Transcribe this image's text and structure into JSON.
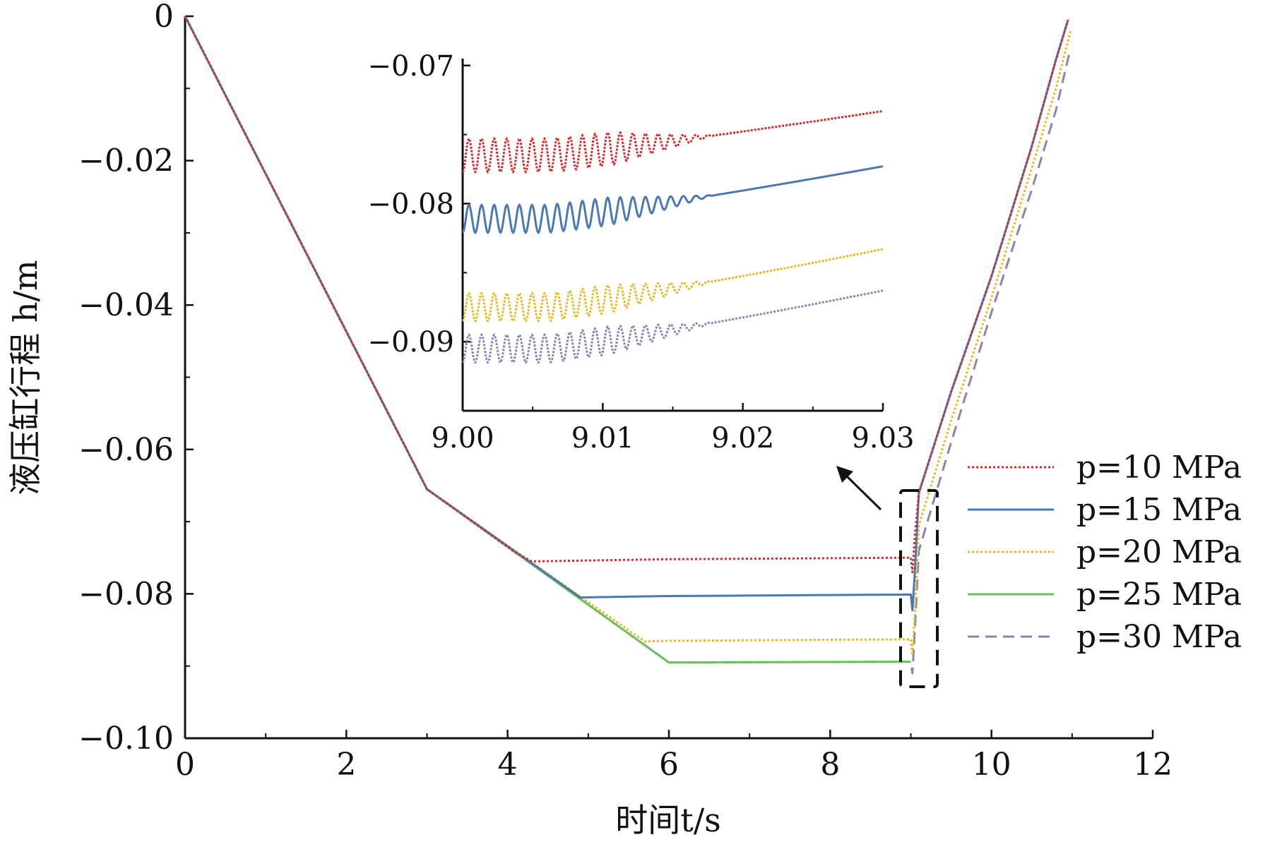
{
  "chart_data": [
    {
      "type": "line",
      "xlabel": "时间t/s",
      "ylabel": "液压缸行程 h/m",
      "xlim": [
        0,
        12
      ],
      "ylim": [
        -0.1,
        0
      ],
      "x_ticks": [
        "0",
        "2",
        "4",
        "6",
        "8",
        "10",
        "12"
      ],
      "y_ticks": [
        "0",
        "−0.02",
        "−0.04",
        "−0.06",
        "−0.08",
        "−0.10"
      ],
      "grid": false,
      "legend_position": "right",
      "series": [
        {
          "name": "p=10 MPa",
          "color": "#d62a2a",
          "style": "dotted",
          "points": [
            [
              0,
              0
            ],
            [
              3,
              -0.0655
            ],
            [
              4.1,
              -0.0743
            ],
            [
              4.3,
              -0.0755
            ],
            [
              6,
              -0.0752
            ],
            [
              9.0,
              -0.075
            ],
            [
              9.02,
              -0.077
            ],
            [
              9.05,
              -0.072
            ],
            [
              9.1,
              -0.066
            ],
            [
              9.5,
              -0.052
            ],
            [
              10,
              -0.036
            ],
            [
              10.5,
              -0.018
            ],
            [
              10.8,
              -0.006
            ],
            [
              10.95,
              -0.0005
            ]
          ]
        },
        {
          "name": "p=15 MPa",
          "color": "#4a78b4",
          "style": "solid",
          "points": [
            [
              0,
              0
            ],
            [
              3,
              -0.0655
            ],
            [
              4.9,
              -0.0805
            ],
            [
              6,
              -0.0803
            ],
            [
              9.0,
              -0.0801
            ],
            [
              9.02,
              -0.0823
            ],
            [
              9.05,
              -0.077
            ],
            [
              9.1,
              -0.066
            ],
            [
              9.5,
              -0.052
            ],
            [
              10,
              -0.036
            ],
            [
              10.5,
              -0.018
            ],
            [
              10.8,
              -0.006
            ],
            [
              10.95,
              -0.0005
            ]
          ]
        },
        {
          "name": "p=20 MPa",
          "color": "#e8b820",
          "style": "dotted",
          "points": [
            [
              0,
              0
            ],
            [
              3,
              -0.0655
            ],
            [
              5.7,
              -0.0866
            ],
            [
              6,
              -0.0865
            ],
            [
              9.0,
              -0.0863
            ],
            [
              9.02,
              -0.0885
            ],
            [
              9.05,
              -0.083
            ],
            [
              9.1,
              -0.0705
            ],
            [
              9.5,
              -0.056
            ],
            [
              10,
              -0.039
            ],
            [
              10.5,
              -0.021
            ],
            [
              10.8,
              -0.01
            ],
            [
              10.98,
              -0.002
            ]
          ]
        },
        {
          "name": "p=25 MPa",
          "color": "#6bbf59",
          "style": "solid",
          "points": [
            [
              0,
              0
            ],
            [
              3,
              -0.0655
            ],
            [
              6,
              -0.0895
            ],
            [
              9.0,
              -0.0894
            ]
          ]
        },
        {
          "name": "p=30 MPa",
          "color": "#8a82b8",
          "style": "dashed",
          "points": [
            [
              0,
              0
            ],
            [
              3,
              -0.0655
            ],
            [
              6,
              -0.0895
            ],
            [
              9.0,
              -0.0894
            ],
            [
              9.02,
              -0.091
            ],
            [
              9.05,
              -0.085
            ],
            [
              9.1,
              -0.074
            ],
            [
              9.5,
              -0.059
            ],
            [
              10,
              -0.041
            ],
            [
              10.5,
              -0.024
            ],
            [
              10.8,
              -0.013
            ],
            [
              10.98,
              -0.0045
            ]
          ]
        }
      ],
      "annotations": [
        "dashed zoom box near t=9 s with arrow pointing to inset"
      ]
    },
    {
      "type": "line",
      "inset": true,
      "xlim": [
        9.0,
        9.03
      ],
      "ylim": [
        -0.095,
        -0.0695
      ],
      "x_ticks": [
        "9.00",
        "9.01",
        "9.02",
        "9.03"
      ],
      "y_ticks": [
        "−0.07",
        "−0.08",
        "−0.09"
      ],
      "series": [
        {
          "color": "#d62a2a",
          "style": "dotted",
          "base_start": -0.0765,
          "osc_amplitude": 0.0012,
          "end": -0.0733
        },
        {
          "color": "#4a78b4",
          "style": "solid",
          "base_start": -0.0811,
          "osc_amplitude": 0.001,
          "end": -0.0773
        },
        {
          "color": "#e8b820",
          "style": "dotted",
          "base_start": -0.0875,
          "osc_amplitude": 0.001,
          "end": -0.0833
        },
        {
          "color": "#8a82b8",
          "style": "dotted",
          "base_start": -0.0905,
          "osc_amplitude": 0.001,
          "end": -0.0863
        }
      ]
    }
  ]
}
